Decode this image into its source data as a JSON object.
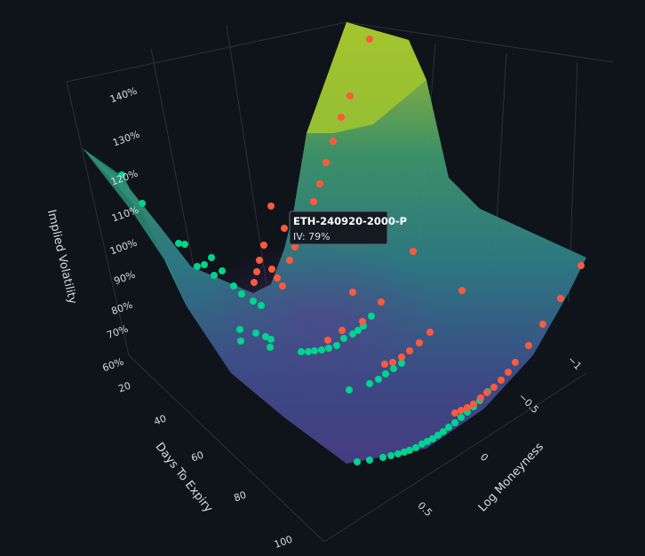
{
  "chart_data": {
    "type": "surface3d",
    "background": "#0f131a",
    "colors": {
      "call_markers": "#00d48f",
      "put_markers": "#ff5a3c",
      "surface_low": "#4b3f8a",
      "surface_mid": "#2f7f8a",
      "surface_high": "#b5cf2a"
    },
    "axes": {
      "z": {
        "title": "Implied Volatility",
        "ticks": [
          "60%",
          "70%",
          "80%",
          "90%",
          "100%",
          "110%",
          "120%",
          "130%",
          "140%"
        ]
      },
      "y": {
        "title": "Days To Expiry",
        "ticks": [
          "20",
          "40",
          "60",
          "80",
          "100"
        ]
      },
      "x": {
        "title": "Log Moneyness",
        "ticks": [
          "0.5",
          "0",
          "−0.5",
          "−1"
        ]
      }
    },
    "tooltip": {
      "title": "ETH-240920-2000-P",
      "line": "IV: 79%"
    }
  }
}
